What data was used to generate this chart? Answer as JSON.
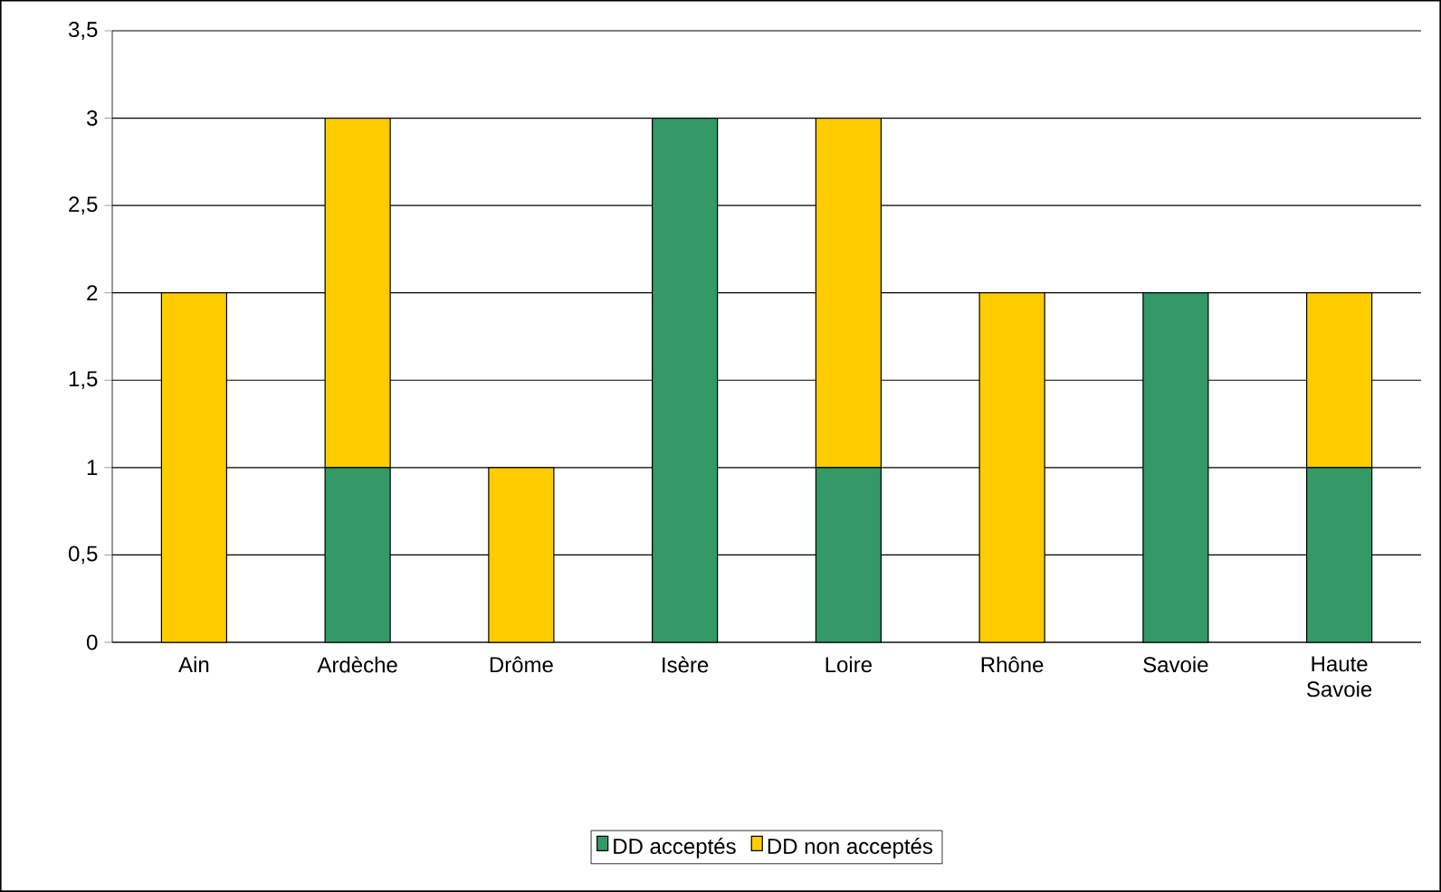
{
  "chart_data": {
    "type": "bar",
    "stacked": true,
    "categories": [
      "Ain",
      "Ardèche",
      "Drôme",
      "Isère",
      "Loire",
      "Rhône",
      "Savoie",
      "Haute Savoie"
    ],
    "series": [
      {
        "name": "DD acceptés",
        "color": "#339966",
        "values": [
          0,
          1,
          0,
          3,
          1,
          0,
          2,
          1
        ]
      },
      {
        "name": "DD non acceptés",
        "color": "#ffcc00",
        "values": [
          2,
          2,
          1,
          0,
          2,
          2,
          0,
          1
        ]
      }
    ],
    "ylim": [
      0,
      3.5
    ],
    "yticks": [
      0,
      {
        "value": 0.5,
        "label": "0,5"
      },
      1,
      {
        "value": 1.5,
        "label": "1,5"
      },
      2,
      {
        "value": 2.5,
        "label": "2,5"
      },
      3,
      {
        "value": 3.5,
        "label": "3,5"
      }
    ],
    "grid": "y",
    "legend": "bottom"
  }
}
